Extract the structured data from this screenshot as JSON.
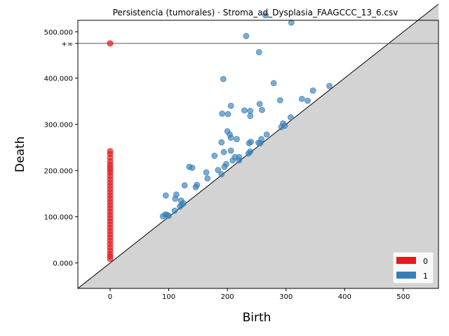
{
  "chart_data": {
    "type": "scatter",
    "title": "Persistencia (tumorales) · Stroma_ad_Dysplasia_FAAGCCC_13_6.csv",
    "xlabel": "Birth",
    "ylabel": "Death",
    "xlim": [
      -55,
      560
    ],
    "ylim": [
      -55000,
      525000
    ],
    "infinity_level": 475000,
    "infinity_label": "+∞",
    "x_ticks": [
      0,
      100,
      200,
      300,
      400,
      500
    ],
    "x_tick_labels": [
      "0",
      "100",
      "200",
      "300",
      "400",
      "500"
    ],
    "y_ticks": [
      0,
      100000,
      200000,
      300000,
      400000,
      500000
    ],
    "y_tick_labels": [
      "0.000",
      "100.000",
      "200.000",
      "300.000",
      "400.000",
      "500.000"
    ],
    "colors": {
      "dim0": "#e41a1c",
      "dim1": "#377eb8",
      "diagonal_fill": "#d3d3d3",
      "infinity_line": "#555555"
    },
    "legend": {
      "placement": "lower-right",
      "entries": [
        {
          "label": "0",
          "color": "#e41a1c"
        },
        {
          "label": "1",
          "color": "#377eb8"
        }
      ]
    },
    "series": [
      {
        "name": "0",
        "infinite_points": [
          {
            "x": 0
          }
        ],
        "points": [
          {
            "x": 0,
            "y": 242000
          },
          {
            "x": 0,
            "y": 236000
          },
          {
            "x": 0,
            "y": 228000
          },
          {
            "x": 0,
            "y": 220000
          },
          {
            "x": 0,
            "y": 213000
          },
          {
            "x": 0,
            "y": 207000
          },
          {
            "x": 0,
            "y": 201000
          },
          {
            "x": 0,
            "y": 195000
          },
          {
            "x": 0,
            "y": 188000
          },
          {
            "x": 0,
            "y": 181000
          },
          {
            "x": 0,
            "y": 174000
          },
          {
            "x": 0,
            "y": 167000
          },
          {
            "x": 0,
            "y": 160000
          },
          {
            "x": 0,
            "y": 153000
          },
          {
            "x": 0,
            "y": 146000
          },
          {
            "x": 0,
            "y": 139000
          },
          {
            "x": 0,
            "y": 132000
          },
          {
            "x": 0,
            "y": 125000
          },
          {
            "x": 0,
            "y": 118000
          },
          {
            "x": 0,
            "y": 111000
          },
          {
            "x": 0,
            "y": 104000
          },
          {
            "x": 0,
            "y": 97000
          },
          {
            "x": 0,
            "y": 90000
          },
          {
            "x": 0,
            "y": 83000
          },
          {
            "x": 0,
            "y": 76000
          },
          {
            "x": 0,
            "y": 69000
          },
          {
            "x": 0,
            "y": 62000
          },
          {
            "x": 0,
            "y": 55000
          },
          {
            "x": 0,
            "y": 48000
          },
          {
            "x": 0,
            "y": 41000
          },
          {
            "x": 0,
            "y": 34000
          },
          {
            "x": 0,
            "y": 27000
          },
          {
            "x": 0,
            "y": 20000
          },
          {
            "x": 0,
            "y": 14000
          },
          {
            "x": 0,
            "y": 9000
          }
        ]
      },
      {
        "name": "1",
        "points": [
          {
            "x": 265,
            "y": 536000
          },
          {
            "x": 309,
            "y": 520000
          },
          {
            "x": 232,
            "y": 491000
          },
          {
            "x": 254,
            "y": 456000
          },
          {
            "x": 193,
            "y": 398000
          },
          {
            "x": 279,
            "y": 389000
          },
          {
            "x": 374,
            "y": 383000
          },
          {
            "x": 346,
            "y": 373000
          },
          {
            "x": 327,
            "y": 355000
          },
          {
            "x": 337,
            "y": 351000
          },
          {
            "x": 290,
            "y": 352000
          },
          {
            "x": 255,
            "y": 344000
          },
          {
            "x": 206,
            "y": 340000
          },
          {
            "x": 259,
            "y": 331000
          },
          {
            "x": 229,
            "y": 330000
          },
          {
            "x": 239,
            "y": 329000
          },
          {
            "x": 191,
            "y": 323000
          },
          {
            "x": 201,
            "y": 322000
          },
          {
            "x": 239,
            "y": 318000
          },
          {
            "x": 308,
            "y": 315000
          },
          {
            "x": 295,
            "y": 302000
          },
          {
            "x": 292,
            "y": 294000
          },
          {
            "x": 298,
            "y": 297000
          },
          {
            "x": 200,
            "y": 285000
          },
          {
            "x": 204,
            "y": 278000
          },
          {
            "x": 267,
            "y": 278000
          },
          {
            "x": 206,
            "y": 271000
          },
          {
            "x": 216,
            "y": 268000
          },
          {
            "x": 258,
            "y": 268000
          },
          {
            "x": 190,
            "y": 261000
          },
          {
            "x": 240,
            "y": 262000
          },
          {
            "x": 237,
            "y": 259000
          },
          {
            "x": 253,
            "y": 260000
          },
          {
            "x": 256,
            "y": 259000
          },
          {
            "x": 206,
            "y": 243000
          },
          {
            "x": 194,
            "y": 240000
          },
          {
            "x": 239,
            "y": 241000
          },
          {
            "x": 236,
            "y": 237000
          },
          {
            "x": 213,
            "y": 229000
          },
          {
            "x": 178,
            "y": 232000
          },
          {
            "x": 220,
            "y": 229000
          },
          {
            "x": 209,
            "y": 222000
          },
          {
            "x": 220,
            "y": 222000
          },
          {
            "x": 198,
            "y": 214000
          },
          {
            "x": 195,
            "y": 208000
          },
          {
            "x": 135,
            "y": 208000
          },
          {
            "x": 140,
            "y": 206000
          },
          {
            "x": 184,
            "y": 201000
          },
          {
            "x": 164,
            "y": 196000
          },
          {
            "x": 190,
            "y": 192000
          },
          {
            "x": 166,
            "y": 183000
          },
          {
            "x": 127,
            "y": 168000
          },
          {
            "x": 148,
            "y": 169000
          },
          {
            "x": 146,
            "y": 164000
          },
          {
            "x": 113,
            "y": 148000
          },
          {
            "x": 95,
            "y": 146000
          },
          {
            "x": 111,
            "y": 139000
          },
          {
            "x": 121,
            "y": 135000
          },
          {
            "x": 125,
            "y": 129000
          },
          {
            "x": 122,
            "y": 126000
          },
          {
            "x": 119,
            "y": 122000
          },
          {
            "x": 110,
            "y": 113000
          },
          {
            "x": 94,
            "y": 105000
          },
          {
            "x": 97,
            "y": 104000
          },
          {
            "x": 90,
            "y": 101000
          },
          {
            "x": 100,
            "y": 102000
          }
        ]
      }
    ]
  }
}
